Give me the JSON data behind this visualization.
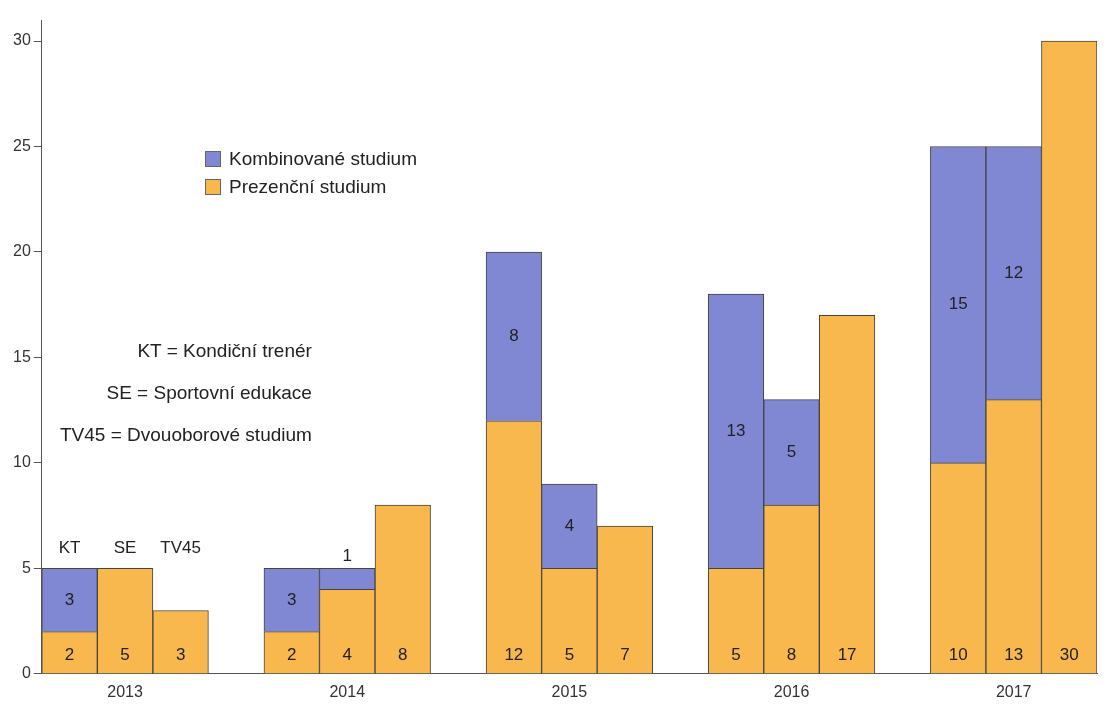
{
  "chart_data": {
    "type": "bar",
    "stacked": true,
    "categories": [
      null,
      "2013",
      null,
      null,
      null,
      "2014",
      null,
      null,
      null,
      "2015",
      null,
      null,
      null,
      "2016",
      null,
      null,
      null,
      "2017",
      null
    ],
    "series": [
      {
        "name": "Prezenční studium",
        "color": "#f8b84e",
        "values": [
          2,
          5,
          3,
          null,
          2,
          4,
          8,
          null,
          12,
          5,
          7,
          null,
          5,
          8,
          17,
          null,
          10,
          13,
          30
        ]
      },
      {
        "name": "Kombinované studium",
        "color": "#8088d4",
        "values": [
          3,
          null,
          null,
          null,
          3,
          1,
          null,
          null,
          8,
          4,
          null,
          null,
          13,
          5,
          null,
          null,
          15,
          12,
          null
        ]
      }
    ],
    "ylim": [
      0,
      31
    ],
    "yticks": [
      0,
      5,
      10,
      15,
      20,
      25,
      30
    ],
    "grid": false,
    "legend": "top left",
    "data_labels": true,
    "annotations": [
      "KT",
      "SE",
      "TV45",
      "KT = Kondiční trenér",
      "SE = Sportovní edukace",
      "TV45 = Dvouoborové studium"
    ]
  }
}
